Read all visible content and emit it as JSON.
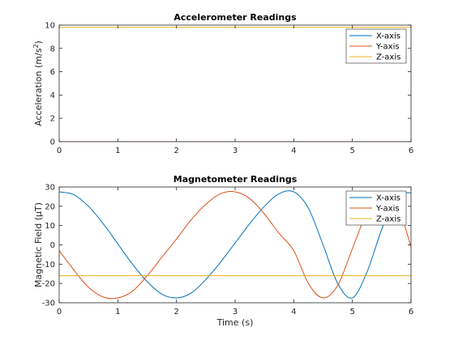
{
  "chart_data": [
    {
      "type": "line",
      "title": "Accelerometer Readings",
      "xlabel": "",
      "ylabel": "Acceleration (m/s²)",
      "ylabel_base": "Acceleration (m/s",
      "ylabel_sup": "2",
      "ylabel_end": ")",
      "xlim": [
        0,
        6
      ],
      "ylim": [
        0,
        10
      ],
      "xticks": [
        0,
        1,
        2,
        3,
        4,
        5,
        6
      ],
      "yticks": [
        0,
        2,
        4,
        6,
        8,
        10
      ],
      "grid": false,
      "legend_location": "top-right",
      "series": [
        {
          "name": "X-axis",
          "color": "#0072BD",
          "x": [
            0,
            6
          ],
          "y": [
            0,
            0
          ]
        },
        {
          "name": "Y-axis",
          "color": "#D95319",
          "x": [
            0,
            6
          ],
          "y": [
            0,
            0
          ]
        },
        {
          "name": "Z-axis",
          "color": "#EDB120",
          "x": [
            0,
            6
          ],
          "y": [
            9.81,
            9.81
          ]
        }
      ]
    },
    {
      "type": "line",
      "title": "Magnetometer Readings",
      "xlabel": "Time (s)",
      "ylabel": "Magnetic Field (μT)",
      "ylabel_base": "Magnetic Field (",
      "ylabel_mu": "μ",
      "ylabel_end": "T)",
      "xlim": [
        0,
        6
      ],
      "ylim": [
        -30,
        30
      ],
      "xticks": [
        0,
        1,
        2,
        3,
        4,
        5,
        6
      ],
      "yticks": [
        -30,
        -20,
        -10,
        0,
        10,
        20,
        30
      ],
      "grid": false,
      "legend_location": "top-right",
      "series": [
        {
          "name": "X-axis",
          "color": "#0072BD",
          "x": [
            0,
            0.25,
            0.5,
            0.75,
            1,
            1.25,
            1.5,
            1.75,
            2,
            2.25,
            2.5,
            2.75,
            3,
            3.25,
            3.5,
            3.75,
            4,
            4.25,
            4.5,
            4.75,
            5,
            5.25,
            5.5,
            5.75,
            6
          ],
          "y": [
            27.5,
            26,
            20,
            11,
            0.5,
            -10,
            -19,
            -25.5,
            -27.5,
            -25,
            -18,
            -9,
            1,
            11,
            20,
            26.5,
            27.5,
            19,
            0,
            -20,
            -27.5,
            -14,
            8,
            25,
            27
          ]
        },
        {
          "name": "Y-axis",
          "color": "#D95319",
          "x": [
            0,
            0.25,
            0.5,
            0.75,
            1,
            1.25,
            1.5,
            1.75,
            2,
            2.25,
            2.5,
            2.75,
            3,
            3.25,
            3.5,
            3.75,
            4,
            4.25,
            4.5,
            4.75,
            5,
            5.25,
            5.5,
            5.75,
            6
          ],
          "y": [
            -3,
            -13,
            -22,
            -27,
            -27.5,
            -24,
            -16,
            -6.5,
            3,
            13,
            21,
            26.5,
            27.5,
            24,
            16,
            6,
            -3,
            -20,
            -27.5,
            -21,
            -2,
            17,
            27.5,
            22,
            -1
          ]
        },
        {
          "name": "Z-axis",
          "color": "#EDB120",
          "x": [
            0,
            6
          ],
          "y": [
            -16,
            -16
          ]
        }
      ]
    }
  ]
}
